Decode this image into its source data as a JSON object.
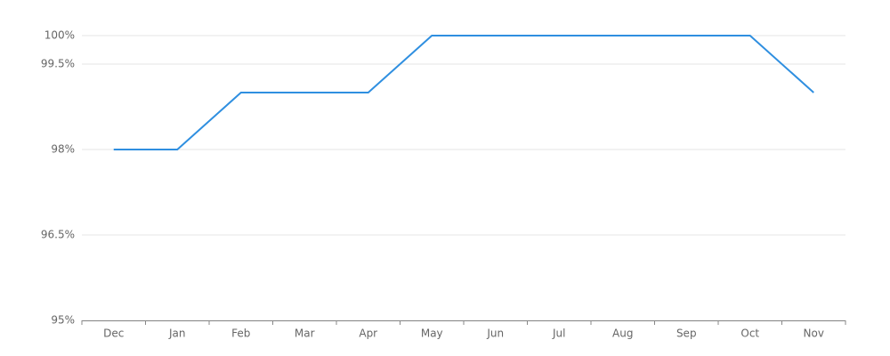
{
  "chart_data": {
    "type": "line",
    "categories": [
      "Dec",
      "Jan",
      "Feb",
      "Mar",
      "Apr",
      "May",
      "Jun",
      "Jul",
      "Aug",
      "Sep",
      "Oct",
      "Nov"
    ],
    "values": [
      98,
      98,
      99,
      99,
      99,
      100,
      100,
      100,
      100,
      100,
      100,
      99
    ],
    "color": "#2f8fe0",
    "ylim": [
      95,
      100
    ],
    "yticks": [
      {
        "value": 95,
        "label": "95%"
      },
      {
        "value": 96.5,
        "label": "96.5%"
      },
      {
        "value": 98,
        "label": "98%"
      },
      {
        "value": 99.5,
        "label": "99.5%"
      },
      {
        "value": 100,
        "label": "100%"
      }
    ],
    "grid": true
  }
}
